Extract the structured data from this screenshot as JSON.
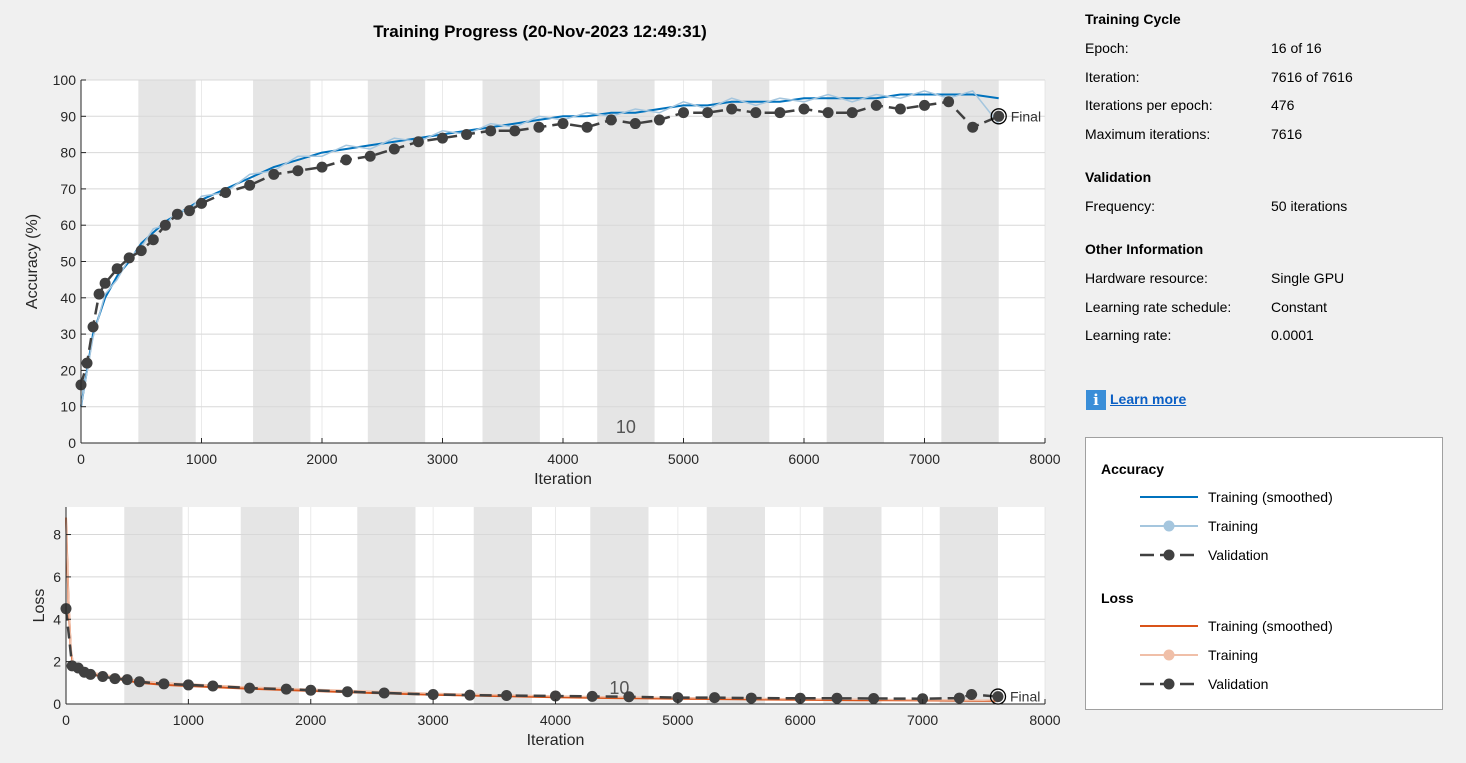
{
  "chart_data": [
    {
      "type": "line",
      "title": "Training Progress (20-Nov-2023 12:49:31)",
      "xlabel": "Iteration",
      "ylabel": "Accuracy (%)",
      "xlim": [
        0,
        8000
      ],
      "ylim": [
        0,
        100
      ],
      "xticks": [
        "0",
        "1000",
        "2000",
        "3000",
        "4000",
        "5000",
        "6000",
        "7000",
        "8000"
      ],
      "yticks": [
        "0",
        "10",
        "20",
        "30",
        "40",
        "50",
        "60",
        "70",
        "80",
        "90",
        "100"
      ],
      "epoch_iterations": 476,
      "shaded_epochs": [
        2,
        4,
        6,
        8,
        10,
        12,
        14,
        16
      ],
      "epoch_annotation": "10",
      "final_label": "Final",
      "final_point": {
        "x": 7616,
        "y": 90
      },
      "series": [
        {
          "name": "Training (smoothed)",
          "color": "#0072bd",
          "x": [
            0,
            100,
            200,
            300,
            400,
            500,
            600,
            700,
            800,
            900,
            1000,
            1200,
            1400,
            1600,
            1800,
            2000,
            2200,
            2400,
            2600,
            2800,
            3000,
            3200,
            3400,
            3600,
            3800,
            4000,
            4200,
            4400,
            4600,
            4800,
            5000,
            5200,
            5400,
            5600,
            5800,
            6000,
            6200,
            6400,
            6600,
            6800,
            7000,
            7200,
            7400,
            7616
          ],
          "y": [
            10,
            30,
            40,
            46,
            50,
            55,
            58,
            61,
            63,
            65,
            67,
            70,
            73,
            76,
            78,
            80,
            81,
            82,
            83,
            84,
            85,
            86,
            87,
            88,
            89,
            90,
            90,
            91,
            91,
            92,
            93,
            93,
            94,
            94,
            94,
            95,
            95,
            95,
            95,
            96,
            96,
            96,
            96,
            95
          ]
        },
        {
          "name": "Training",
          "color": "#a5c6de",
          "x": [
            0,
            100,
            200,
            300,
            400,
            500,
            600,
            700,
            800,
            900,
            1000,
            1200,
            1400,
            1600,
            1800,
            2000,
            2200,
            2400,
            2600,
            2800,
            3000,
            3200,
            3400,
            3600,
            3800,
            4000,
            4200,
            4400,
            4600,
            4800,
            5000,
            5200,
            5400,
            5600,
            5800,
            6000,
            6200,
            6400,
            6600,
            6800,
            7000,
            7200,
            7400,
            7616
          ],
          "y": [
            10,
            29,
            41,
            45,
            51,
            54,
            59,
            60,
            64,
            64,
            68,
            69,
            74,
            75,
            79,
            79,
            82,
            81,
            84,
            83,
            86,
            85,
            88,
            87,
            90,
            89,
            91,
            90,
            92,
            91,
            94,
            92,
            95,
            93,
            95,
            94,
            96,
            94,
            96,
            95,
            97,
            95,
            97,
            88
          ]
        },
        {
          "name": "Validation",
          "color": "#404040",
          "x": [
            0,
            50,
            100,
            150,
            200,
            300,
            400,
            500,
            600,
            700,
            800,
            900,
            1000,
            1200,
            1400,
            1600,
            1800,
            2000,
            2200,
            2400,
            2600,
            2800,
            3000,
            3200,
            3400,
            3600,
            3800,
            4000,
            4200,
            4400,
            4600,
            4800,
            5000,
            5200,
            5400,
            5600,
            5800,
            6000,
            6200,
            6400,
            6600,
            6800,
            7000,
            7200,
            7400,
            7616
          ],
          "y": [
            16,
            22,
            32,
            41,
            44,
            48,
            51,
            53,
            56,
            60,
            63,
            64,
            66,
            69,
            71,
            74,
            75,
            76,
            78,
            79,
            81,
            83,
            84,
            85,
            86,
            86,
            87,
            88,
            87,
            89,
            88,
            89,
            91,
            91,
            92,
            91,
            91,
            92,
            91,
            91,
            93,
            92,
            93,
            94,
            87,
            90
          ]
        }
      ]
    },
    {
      "type": "line",
      "xlabel": "Iteration",
      "ylabel": "Loss",
      "xlim": [
        0,
        8000
      ],
      "ylim": [
        0,
        9.3
      ],
      "xticks": [
        "0",
        "1000",
        "2000",
        "3000",
        "4000",
        "5000",
        "6000",
        "7000",
        "8000"
      ],
      "yticks": [
        "0",
        "2",
        "4",
        "6",
        "8"
      ],
      "yticks_values": [
        0,
        2,
        4,
        6,
        8
      ],
      "epoch_iterations": 476,
      "shaded_epochs": [
        2,
        4,
        6,
        8,
        10,
        12,
        14,
        16
      ],
      "epoch_annotation": "10",
      "final_label": "Final",
      "final_point": {
        "x": 7616,
        "y": 0.35
      },
      "series": [
        {
          "name": "Training (smoothed)",
          "color": "#d95319",
          "x": [
            0,
            20,
            40,
            60,
            100,
            200,
            400,
            600,
            800,
            1000,
            1500,
            2000,
            2500,
            3000,
            3500,
            4000,
            4500,
            5000,
            5500,
            6000,
            6500,
            7000,
            7500,
            7616
          ],
          "y": [
            8.8,
            5.0,
            2.5,
            1.8,
            1.6,
            1.4,
            1.2,
            1.0,
            0.9,
            0.85,
            0.72,
            0.62,
            0.52,
            0.44,
            0.38,
            0.32,
            0.28,
            0.25,
            0.22,
            0.2,
            0.18,
            0.17,
            0.15,
            0.15
          ]
        },
        {
          "name": "Training",
          "color": "#f0bfa8",
          "x": [
            0,
            20,
            40,
            60,
            100,
            200,
            400,
            600,
            800,
            1000,
            1500,
            2000,
            2500,
            3000,
            3500,
            4000,
            4500,
            5000,
            5500,
            6000,
            6500,
            7000,
            7500,
            7616
          ],
          "y": [
            8.8,
            5.2,
            2.7,
            1.9,
            1.7,
            1.5,
            1.3,
            1.1,
            1.0,
            0.95,
            0.8,
            0.7,
            0.6,
            0.5,
            0.44,
            0.38,
            0.33,
            0.3,
            0.27,
            0.24,
            0.22,
            0.2,
            0.18,
            0.2
          ]
        },
        {
          "name": "Validation",
          "color": "#404040",
          "x": [
            0,
            50,
            100,
            150,
            200,
            300,
            400,
            500,
            600,
            800,
            1000,
            1200,
            1500,
            1800,
            2000,
            2300,
            2600,
            3000,
            3300,
            3600,
            4000,
            4300,
            4600,
            5000,
            5300,
            5600,
            6000,
            6300,
            6600,
            7000,
            7300,
            7400,
            7616
          ],
          "y": [
            4.5,
            1.8,
            1.7,
            1.5,
            1.4,
            1.3,
            1.2,
            1.15,
            1.05,
            0.95,
            0.9,
            0.85,
            0.75,
            0.7,
            0.65,
            0.58,
            0.52,
            0.45,
            0.42,
            0.4,
            0.38,
            0.36,
            0.34,
            0.3,
            0.3,
            0.28,
            0.27,
            0.27,
            0.26,
            0.25,
            0.28,
            0.45,
            0.35
          ]
        }
      ]
    }
  ],
  "info": {
    "training_cycle": {
      "title": "Training Cycle",
      "rows": [
        {
          "label": "Epoch:",
          "value": "16 of 16"
        },
        {
          "label": "Iteration:",
          "value": "7616 of 7616"
        },
        {
          "label": "Iterations per epoch:",
          "value": "476"
        },
        {
          "label": "Maximum iterations:",
          "value": "7616"
        }
      ]
    },
    "validation": {
      "title": "Validation",
      "rows": [
        {
          "label": "Frequency:",
          "value": "50 iterations"
        }
      ]
    },
    "other": {
      "title": "Other Information",
      "rows": [
        {
          "label": "Hardware resource:",
          "value": "Single GPU"
        },
        {
          "label": "Learning rate schedule:",
          "value": "Constant"
        },
        {
          "label": "Learning rate:",
          "value": "0.0001"
        }
      ]
    },
    "learn_more": "Learn more",
    "info_icon": "info-icon"
  },
  "legend": {
    "accuracy": {
      "title": "Accuracy",
      "items": [
        {
          "label": "Training (smoothed)",
          "color": "#0072bd",
          "style": "solid"
        },
        {
          "label": "Training",
          "color": "#a5c6de",
          "style": "marker"
        },
        {
          "label": "Validation",
          "color": "#404040",
          "style": "dashed-marker"
        }
      ]
    },
    "loss": {
      "title": "Loss",
      "items": [
        {
          "label": "Training (smoothed)",
          "color": "#d95319",
          "style": "solid"
        },
        {
          "label": "Training",
          "color": "#f0bfa8",
          "style": "marker"
        },
        {
          "label": "Validation",
          "color": "#404040",
          "style": "dashed-marker"
        }
      ]
    }
  }
}
